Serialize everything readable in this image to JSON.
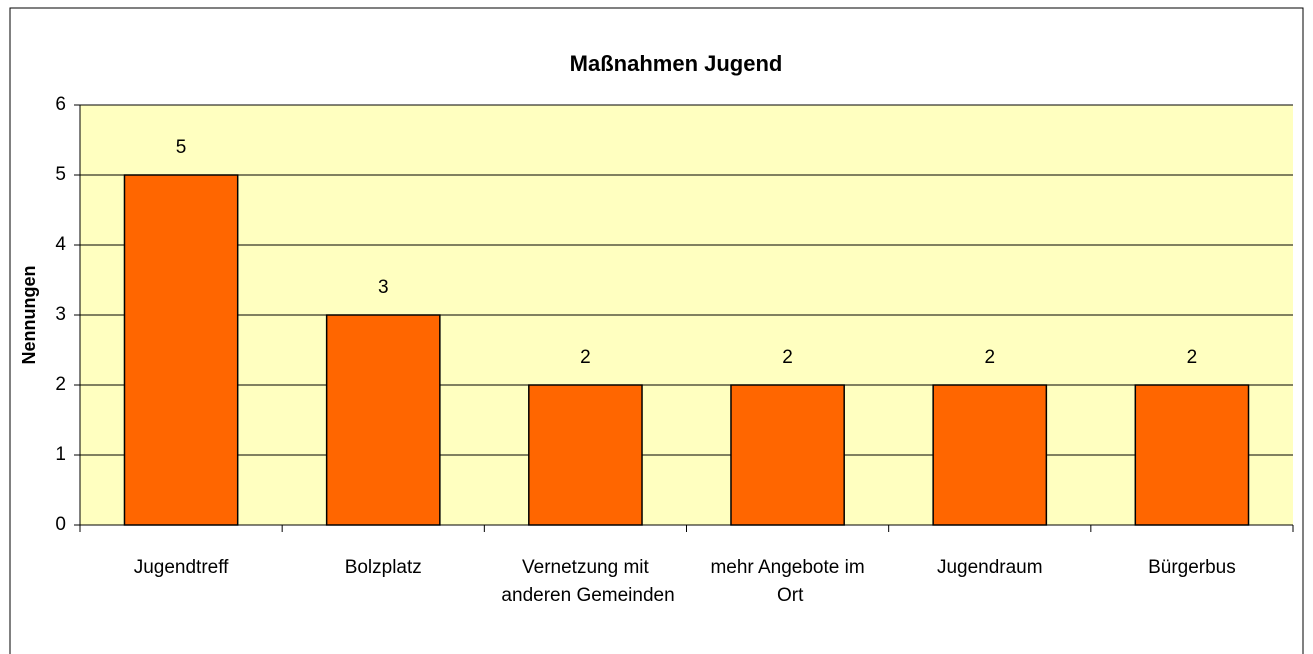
{
  "chart_data": {
    "type": "bar",
    "title": "Maßnahmen Jugend",
    "y_label": "Nennungen",
    "categories": [
      "Jugendtreff",
      "Bolzplatz",
      "Vernetzung mit anderen Gemeinden",
      "mehr Angebote im Ort",
      "Jugendraum",
      "Bürgerbus"
    ],
    "values": [
      5,
      3,
      2,
      2,
      2,
      2
    ],
    "color": "#ff6600",
    "ylim": [
      0,
      6
    ],
    "yticks": [
      0,
      1,
      2,
      3,
      4,
      5,
      6
    ],
    "grid": true
  }
}
